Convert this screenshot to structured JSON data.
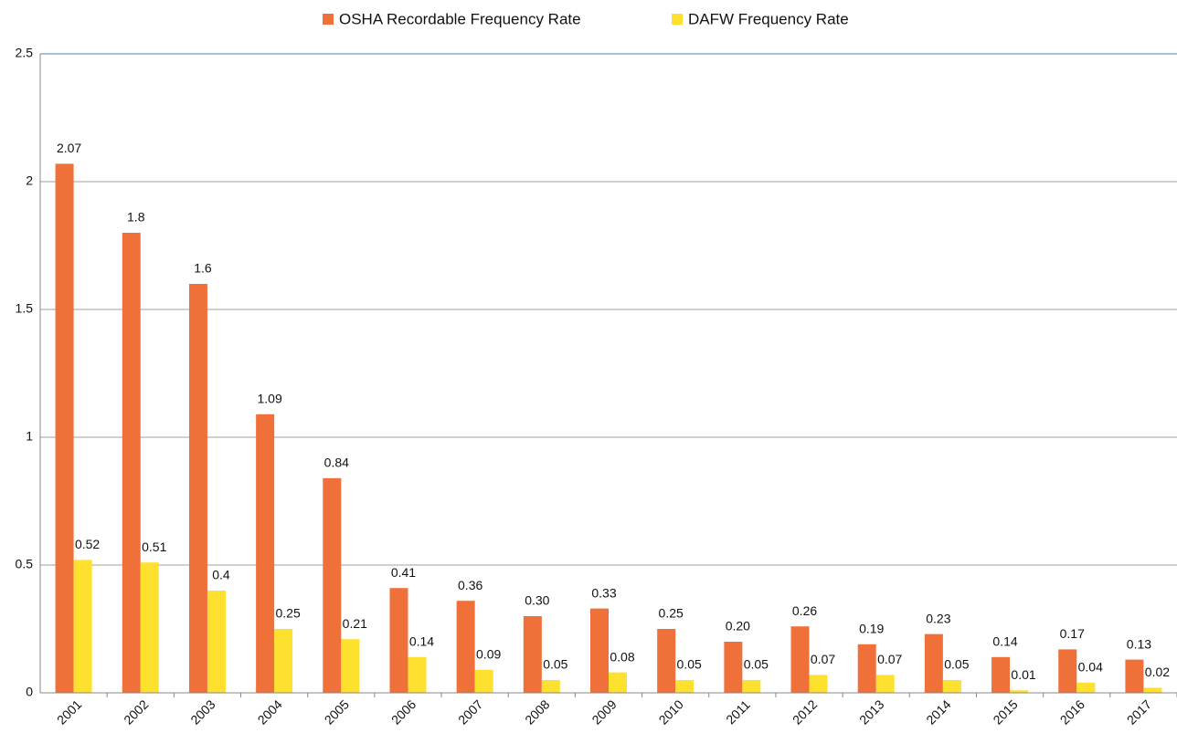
{
  "chart_data": {
    "type": "bar",
    "categories": [
      "2001",
      "2002",
      "2003",
      "2004",
      "2005",
      "2006",
      "2007",
      "2008",
      "2009",
      "2010",
      "2011",
      "2012",
      "2013",
      "2014",
      "2015",
      "2016",
      "2017"
    ],
    "series": [
      {
        "name": "OSHA Recordable Frequency Rate",
        "color": "#f0703a",
        "values": [
          2.07,
          1.8,
          1.6,
          1.09,
          0.84,
          0.41,
          0.36,
          0.3,
          0.33,
          0.25,
          0.2,
          0.26,
          0.19,
          0.23,
          0.14,
          0.17,
          0.13
        ],
        "value_labels": [
          "2.07",
          "1.8",
          "1.6",
          "1.09",
          "0.84",
          "0.41",
          "0.36",
          "0.30",
          "0.33",
          "0.25",
          "0.20",
          "0.26",
          "0.19",
          "0.23",
          "0.14",
          "0.17",
          "0.13"
        ]
      },
      {
        "name": "DAFW Frequency Rate",
        "color": "#fde12e",
        "values": [
          0.52,
          0.51,
          0.4,
          0.25,
          0.21,
          0.14,
          0.09,
          0.05,
          0.08,
          0.05,
          0.05,
          0.07,
          0.07,
          0.05,
          0.01,
          0.04,
          0.02
        ],
        "value_labels": [
          "0.52",
          "0.51",
          "0.4",
          "0.25",
          "0.21",
          "0.14",
          "0.09",
          "0.05",
          "0.08",
          "0.05",
          "0.05",
          "0.07",
          "0.07",
          "0.05",
          "0.01",
          "0.04",
          "0.02"
        ]
      }
    ],
    "ylim": [
      0,
      2.5
    ],
    "yticks": [
      0,
      0.5,
      1,
      1.5,
      2,
      2.5
    ],
    "grid": true,
    "legend": "top"
  }
}
